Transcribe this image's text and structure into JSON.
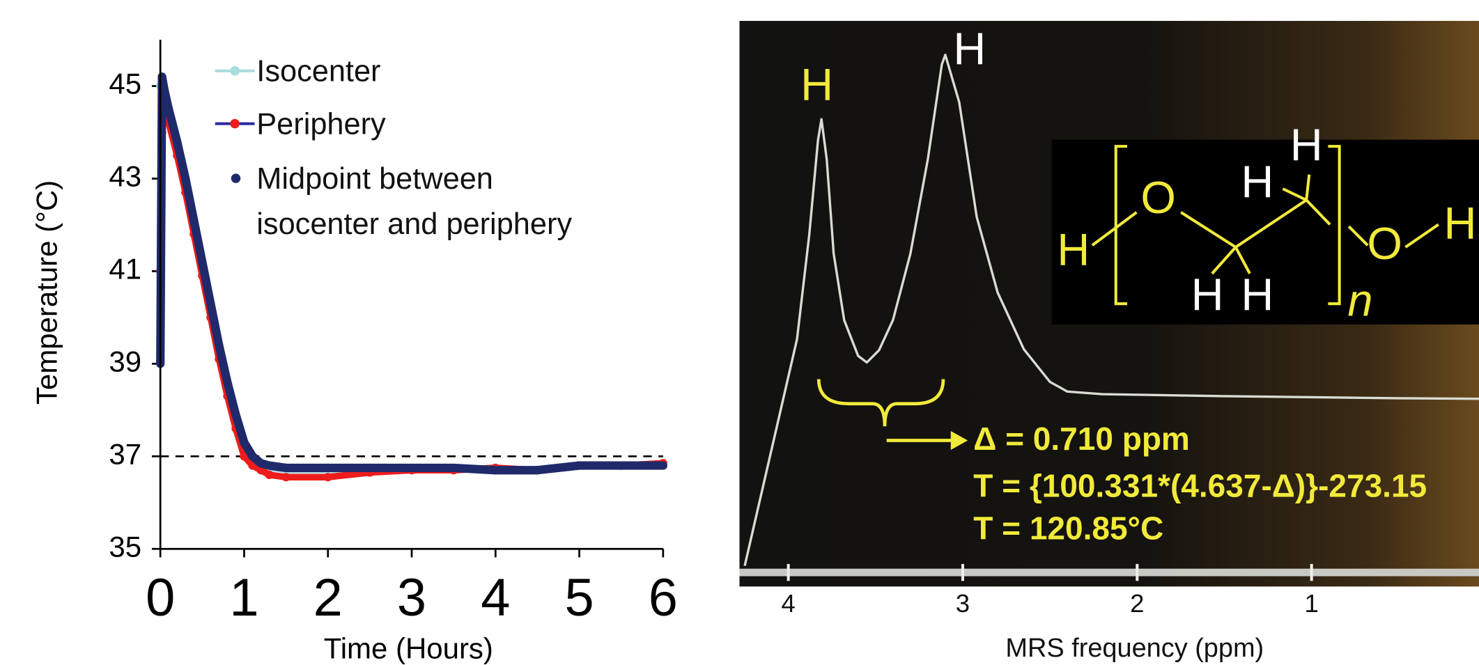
{
  "chart_data": [
    {
      "type": "line",
      "xlabel": "Time (Hours)",
      "ylabel": "Temperature (°C)",
      "x": [
        0,
        0.02,
        0.05,
        0.1,
        0.2,
        0.3,
        0.4,
        0.5,
        0.6,
        0.7,
        0.8,
        0.9,
        1.0,
        1.1,
        1.2,
        1.3,
        1.5,
        2,
        2.5,
        3,
        3.5,
        4,
        4.5,
        5,
        5.5,
        6
      ],
      "series": [
        {
          "name": "Isocenter",
          "color": "#a9dcdc",
          "marker": "line-dot",
          "values": [
            45.0,
            44.9,
            44.7,
            44.4,
            43.7,
            42.9,
            42.0,
            41.1,
            40.2,
            39.3,
            38.5,
            37.8,
            37.2,
            36.9,
            36.8,
            36.75,
            36.7,
            36.7,
            36.7,
            36.75,
            36.7,
            36.75,
            36.7,
            36.8,
            36.8,
            36.8
          ]
        },
        {
          "name": "Periphery",
          "color": "#ee1c1c",
          "marker": "line-dot",
          "values": [
            41.0,
            44.0,
            44.5,
            44.2,
            43.5,
            42.7,
            41.8,
            40.9,
            40.0,
            39.1,
            38.3,
            37.6,
            37.0,
            36.8,
            36.7,
            36.6,
            36.55,
            36.55,
            36.65,
            36.7,
            36.7,
            36.75,
            36.7,
            36.8,
            36.8,
            36.85
          ]
        },
        {
          "name": "Midpoint between\nisocenter and periphery",
          "color": "#1f2a6b",
          "marker": "dot",
          "values": [
            39.0,
            45.2,
            44.9,
            44.5,
            43.8,
            43.0,
            42.1,
            41.2,
            40.3,
            39.4,
            38.6,
            37.9,
            37.3,
            37.0,
            36.85,
            36.8,
            36.75,
            36.75,
            36.75,
            36.75,
            36.75,
            36.7,
            36.7,
            36.8,
            36.8,
            36.8
          ]
        }
      ],
      "xlim": [
        0,
        6
      ],
      "xticks": [
        0,
        1,
        2,
        3,
        4,
        5,
        6
      ],
      "ylim": [
        35,
        46
      ],
      "yticks": [
        35,
        37,
        39,
        41,
        43,
        45
      ],
      "reference_line": 37
    },
    {
      "type": "line",
      "xlabel": "MRS frequency (ppm)",
      "x": [
        4.25,
        4.15,
        4.05,
        3.95,
        3.88,
        3.83,
        3.81,
        3.78,
        3.74,
        3.68,
        3.6,
        3.55,
        3.48,
        3.4,
        3.3,
        3.2,
        3.12,
        3.1,
        3.02,
        2.92,
        2.8,
        2.65,
        2.5,
        2.4,
        2.2,
        1.5,
        0.5,
        0.04
      ],
      "values": [
        0,
        14.8,
        29.6,
        44.4,
        64.8,
        83.3,
        87.4,
        79.6,
        61.1,
        48.1,
        41.1,
        39.8,
        42.2,
        48.1,
        61.1,
        79.6,
        98.1,
        100,
        90.7,
        68.3,
        53.5,
        42.4,
        36.0,
        34.1,
        33.6,
        33.2,
        32.8,
        32.7
      ],
      "color": "#d9dcd2",
      "xlim": [
        4.28,
        0.04
      ],
      "xticks": [
        4,
        3,
        2,
        1
      ],
      "ylim": [
        0,
        100
      ],
      "annotations": [
        "H",
        "H",
        "Δ = 0.710 ppm",
        "T = {100.331*(4.637-Δ)}-273.15",
        "T = 120.85°C"
      ],
      "structure_labels": [
        "H",
        "O",
        "H",
        "H",
        "H",
        "H",
        "O",
        "H",
        "n"
      ]
    }
  ]
}
